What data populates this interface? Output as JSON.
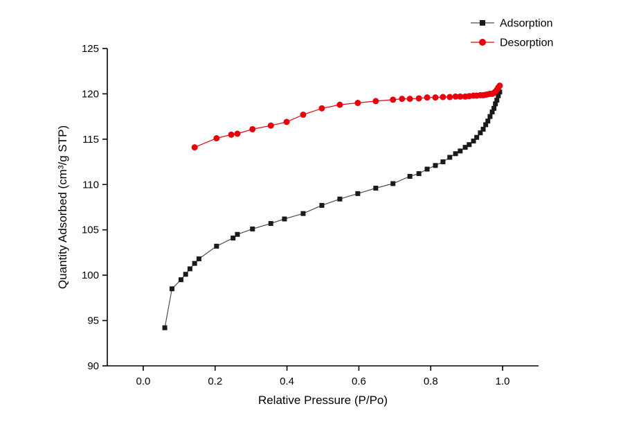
{
  "figure": {
    "background": "#ffffff",
    "axis_color": "#000000"
  },
  "chart_data": {
    "type": "line",
    "title": "",
    "xlabel": "Relative Pressure (P/Po)",
    "ylabel": "Quantity Adsorbed (cm³/g STP)",
    "xlim": [
      -0.1,
      1.1
    ],
    "ylim": [
      90,
      125
    ],
    "grid": false,
    "legend_position": "top-right",
    "x_ticks": [
      0.0,
      0.2,
      0.4,
      0.6,
      0.8,
      1.0
    ],
    "x_tick_labels": [
      "0.0",
      "0.2",
      "0.4",
      "0.6",
      "0.8",
      "1.0"
    ],
    "y_ticks": [
      90,
      95,
      100,
      105,
      110,
      115,
      120,
      125
    ],
    "y_tick_labels": [
      "90",
      "95",
      "100",
      "105",
      "110",
      "115",
      "120",
      "125"
    ],
    "series": [
      {
        "name": "Adsorption",
        "marker": "square",
        "marker_color": "#1a1a1a",
        "line_color": "#4d4d4d",
        "points": [
          [
            0.06,
            94.2
          ],
          [
            0.08,
            98.5
          ],
          [
            0.105,
            99.5
          ],
          [
            0.118,
            100.1
          ],
          [
            0.13,
            100.7
          ],
          [
            0.143,
            101.3
          ],
          [
            0.155,
            101.8
          ],
          [
            0.204,
            103.2
          ],
          [
            0.25,
            104.1
          ],
          [
            0.262,
            104.5
          ],
          [
            0.304,
            105.1
          ],
          [
            0.355,
            105.7
          ],
          [
            0.393,
            106.2
          ],
          [
            0.445,
            106.8
          ],
          [
            0.497,
            107.7
          ],
          [
            0.547,
            108.4
          ],
          [
            0.597,
            109.0
          ],
          [
            0.647,
            109.6
          ],
          [
            0.695,
            110.1
          ],
          [
            0.742,
            110.9
          ],
          [
            0.767,
            111.2
          ],
          [
            0.79,
            111.7
          ],
          [
            0.813,
            112.1
          ],
          [
            0.834,
            112.5
          ],
          [
            0.853,
            113.0
          ],
          [
            0.869,
            113.4
          ],
          [
            0.882,
            113.7
          ],
          [
            0.896,
            114.1
          ],
          [
            0.907,
            114.4
          ],
          [
            0.919,
            114.8
          ],
          [
            0.928,
            115.2
          ],
          [
            0.938,
            115.7
          ],
          [
            0.946,
            116.1
          ],
          [
            0.953,
            116.6
          ],
          [
            0.959,
            117.0
          ],
          [
            0.965,
            117.5
          ],
          [
            0.971,
            118.0
          ],
          [
            0.976,
            118.4
          ],
          [
            0.98,
            118.9
          ],
          [
            0.984,
            119.3
          ],
          [
            0.988,
            119.8
          ],
          [
            0.992,
            120.2
          ]
        ]
      },
      {
        "name": "Desorption",
        "marker": "circle",
        "marker_color": "#e8000d",
        "line_color": "#e8000d",
        "points": [
          [
            0.143,
            114.1
          ],
          [
            0.204,
            115.1
          ],
          [
            0.245,
            115.5
          ],
          [
            0.262,
            115.6
          ],
          [
            0.304,
            116.1
          ],
          [
            0.355,
            116.5
          ],
          [
            0.399,
            116.9
          ],
          [
            0.445,
            117.7
          ],
          [
            0.497,
            118.4
          ],
          [
            0.547,
            118.8
          ],
          [
            0.597,
            119.0
          ],
          [
            0.647,
            119.2
          ],
          [
            0.695,
            119.35
          ],
          [
            0.72,
            119.45
          ],
          [
            0.742,
            119.45
          ],
          [
            0.767,
            119.5
          ],
          [
            0.79,
            119.6
          ],
          [
            0.813,
            119.6
          ],
          [
            0.834,
            119.65
          ],
          [
            0.853,
            119.65
          ],
          [
            0.869,
            119.7
          ],
          [
            0.882,
            119.7
          ],
          [
            0.896,
            119.7
          ],
          [
            0.907,
            119.75
          ],
          [
            0.919,
            119.8
          ],
          [
            0.928,
            119.8
          ],
          [
            0.938,
            119.85
          ],
          [
            0.946,
            119.85
          ],
          [
            0.953,
            119.9
          ],
          [
            0.959,
            119.95
          ],
          [
            0.965,
            120.0
          ],
          [
            0.971,
            120.0
          ],
          [
            0.976,
            120.1
          ],
          [
            0.98,
            120.25
          ],
          [
            0.984,
            120.45
          ],
          [
            0.988,
            120.7
          ],
          [
            0.992,
            120.9
          ]
        ]
      }
    ]
  }
}
